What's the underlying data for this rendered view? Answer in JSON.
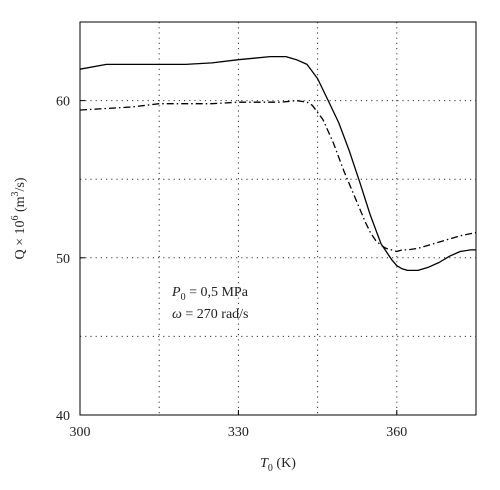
{
  "chart_data": {
    "type": "line",
    "title": "",
    "xlabel": {
      "main": "T",
      "sub": "0",
      "unit": " (K)"
    },
    "ylabel": {
      "pre": "Q × 10",
      "sup": "6",
      "mid": " (m",
      "sup2": "3",
      "post": "/s)"
    },
    "xlim": [
      300,
      375
    ],
    "ylim": [
      40,
      65
    ],
    "x_ticks": [
      300,
      330,
      360
    ],
    "x_tick_labels": [
      "300",
      "330",
      "360"
    ],
    "y_ticks": [
      40,
      50,
      60
    ],
    "y_tick_labels": [
      "40",
      "50",
      "60"
    ],
    "grid": {
      "style": "dotted",
      "x": [
        315,
        330,
        345,
        360
      ],
      "y": [
        45,
        50,
        55,
        60
      ]
    },
    "annotations": [
      {
        "main": "P",
        "sub": "0",
        "rest": " = 0,5 MPa"
      },
      {
        "main": "ω",
        "sub": "",
        "rest": " = 270 rad/s"
      }
    ],
    "series": [
      {
        "style": "solid",
        "color": "#000000",
        "x": [
          300,
          305,
          310,
          315,
          320,
          325,
          330,
          333,
          336,
          339,
          341,
          343,
          345,
          347,
          349,
          351,
          353,
          355,
          357,
          359,
          360,
          361,
          362,
          364,
          366,
          368,
          370,
          372,
          374,
          375
        ],
        "y": [
          62.0,
          62.3,
          62.3,
          62.3,
          62.3,
          62.4,
          62.6,
          62.7,
          62.8,
          62.8,
          62.6,
          62.3,
          61.4,
          60.0,
          58.6,
          56.8,
          54.8,
          52.7,
          50.9,
          49.9,
          49.5,
          49.3,
          49.2,
          49.2,
          49.4,
          49.7,
          50.1,
          50.4,
          50.5,
          50.5
        ]
      },
      {
        "style": "dashdot",
        "color": "#000000",
        "x": [
          300,
          305,
          310,
          315,
          320,
          325,
          330,
          335,
          338,
          341,
          343,
          344,
          346,
          348,
          350,
          352,
          354,
          355,
          356,
          357,
          358,
          359,
          360,
          361,
          362,
          364,
          366,
          368,
          370,
          372,
          375
        ],
        "y": [
          59.4,
          59.5,
          59.6,
          59.8,
          59.8,
          59.8,
          59.9,
          59.9,
          59.9,
          60.0,
          59.9,
          59.7,
          58.8,
          57.3,
          55.5,
          53.9,
          52.3,
          51.6,
          51.1,
          50.8,
          50.6,
          50.5,
          50.4,
          50.5,
          50.5,
          50.6,
          50.8,
          51.0,
          51.2,
          51.4,
          51.6
        ]
      }
    ]
  }
}
